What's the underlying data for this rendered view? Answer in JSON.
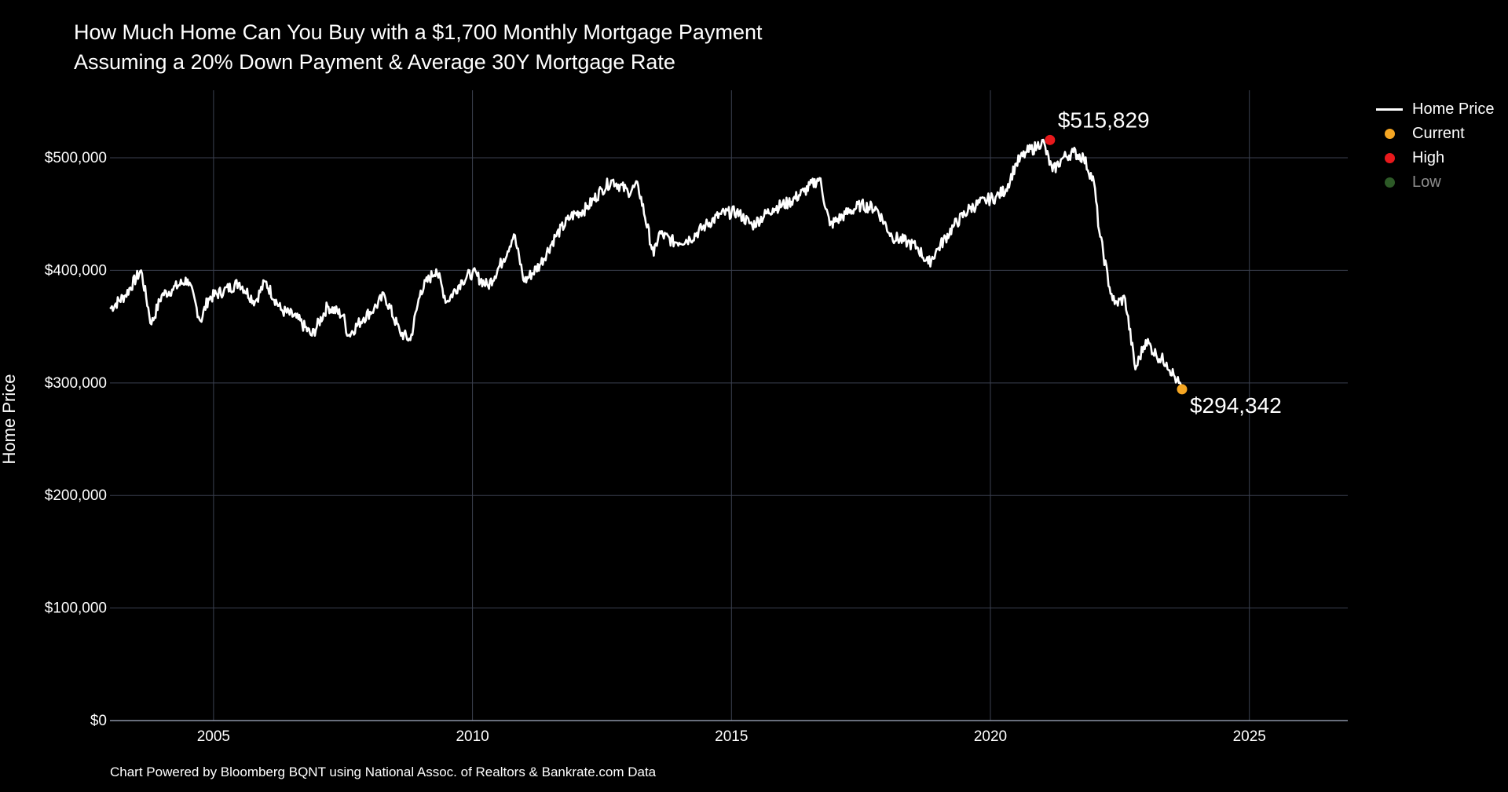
{
  "chart_data": {
    "type": "line",
    "title": "How Much Home Can You Buy with a $1,700 Monthly Mortgage Payment",
    "subtitle": "Assuming a 20% Down Payment & Average 30Y Mortgage Rate",
    "ylabel": "Home Price",
    "xlabel": "",
    "footer": "Chart Powered by Bloomberg BQNT using National Assoc. of Realtors & Bankrate.com Data",
    "xlim": [
      2003.0,
      2026.9
    ],
    "ylim": [
      0,
      560000
    ],
    "x_ticks": [
      2005,
      2010,
      2015,
      2020,
      2025
    ],
    "x_tick_labels": [
      "2005",
      "2010",
      "2015",
      "2020",
      "2025"
    ],
    "y_ticks": [
      0,
      100000,
      200000,
      300000,
      400000,
      500000
    ],
    "y_tick_labels": [
      "$0",
      "$100,000",
      "$200,000",
      "$300,000",
      "$400,000",
      "$500,000"
    ],
    "grid": true,
    "legend_position": "top-right",
    "legend": [
      {
        "name": "Home Price",
        "kind": "line",
        "color": "#ffffff",
        "dimmed": false
      },
      {
        "name": "Current",
        "kind": "dot",
        "color": "#f5a623",
        "dimmed": false
      },
      {
        "name": "High",
        "kind": "dot",
        "color": "#e8191c",
        "dimmed": false
      },
      {
        "name": "Low",
        "kind": "dot",
        "color": "#2d5a27",
        "dimmed": true
      }
    ],
    "series": [
      {
        "name": "Home Price",
        "color": "#ffffff",
        "x": [
          2003.0,
          2003.3,
          2003.6,
          2003.8,
          2004.0,
          2004.2,
          2004.5,
          2004.75,
          2004.9,
          2005.2,
          2005.5,
          2005.8,
          2006.0,
          2006.3,
          2006.6,
          2006.9,
          2007.2,
          2007.5,
          2007.6,
          2007.9,
          2008.1,
          2008.3,
          2008.6,
          2008.8,
          2009.0,
          2009.3,
          2009.5,
          2009.8,
          2010.0,
          2010.3,
          2010.6,
          2010.8,
          2011.0,
          2011.3,
          2011.6,
          2011.9,
          2012.2,
          2012.5,
          2012.7,
          2013.0,
          2013.2,
          2013.5,
          2013.6,
          2013.9,
          2014.2,
          2014.5,
          2014.8,
          2015.1,
          2015.4,
          2015.8,
          2016.1,
          2016.4,
          2016.7,
          2016.9,
          2017.2,
          2017.5,
          2017.8,
          2018.1,
          2018.4,
          2018.6,
          2018.8,
          2019.0,
          2019.3,
          2019.6,
          2019.9,
          2020.1,
          2020.3,
          2020.5,
          2020.7,
          2020.9,
          2021.0,
          2021.2,
          2021.4,
          2021.6,
          2021.8,
          2022.0,
          2022.1,
          2022.3,
          2022.4,
          2022.6,
          2022.8,
          2023.0,
          2023.2,
          2023.4,
          2023.6,
          2023.7
        ],
        "values": [
          366000,
          378000,
          400000,
          352000,
          378000,
          383000,
          392000,
          355000,
          375000,
          382000,
          389000,
          372000,
          390000,
          365000,
          358000,
          342000,
          368000,
          360000,
          342000,
          358000,
          366000,
          378000,
          345000,
          338000,
          382000,
          401000,
          372000,
          391000,
          398000,
          386000,
          410000,
          432000,
          390000,
          405000,
          430000,
          448000,
          455000,
          472000,
          480000,
          470000,
          475000,
          413000,
          433000,
          425000,
          428000,
          440000,
          450000,
          452000,
          440000,
          455000,
          460000,
          470000,
          482000,
          440000,
          450000,
          458000,
          455000,
          430000,
          425000,
          420000,
          406000,
          420000,
          440000,
          455000,
          462000,
          465000,
          472000,
          495000,
          505000,
          510000,
          515829,
          488000,
          500000,
          505000,
          500000,
          478000,
          435000,
          385000,
          370000,
          375000,
          312000,
          338000,
          325000,
          318000,
          302000,
          294342
        ]
      }
    ],
    "points": [
      {
        "name": "High",
        "x": 2021.15,
        "y": 515829,
        "color": "#e8191c",
        "label": "$515,829",
        "label_pos": "top-right"
      },
      {
        "name": "Current",
        "x": 2023.7,
        "y": 294342,
        "color": "#f5a623",
        "label": "$294,342",
        "label_pos": "bottom-right"
      }
    ],
    "colors": {
      "background": "#000000",
      "grid": "#3b4150",
      "text": "#ffffff",
      "axis_line": "#8b93a6"
    }
  }
}
